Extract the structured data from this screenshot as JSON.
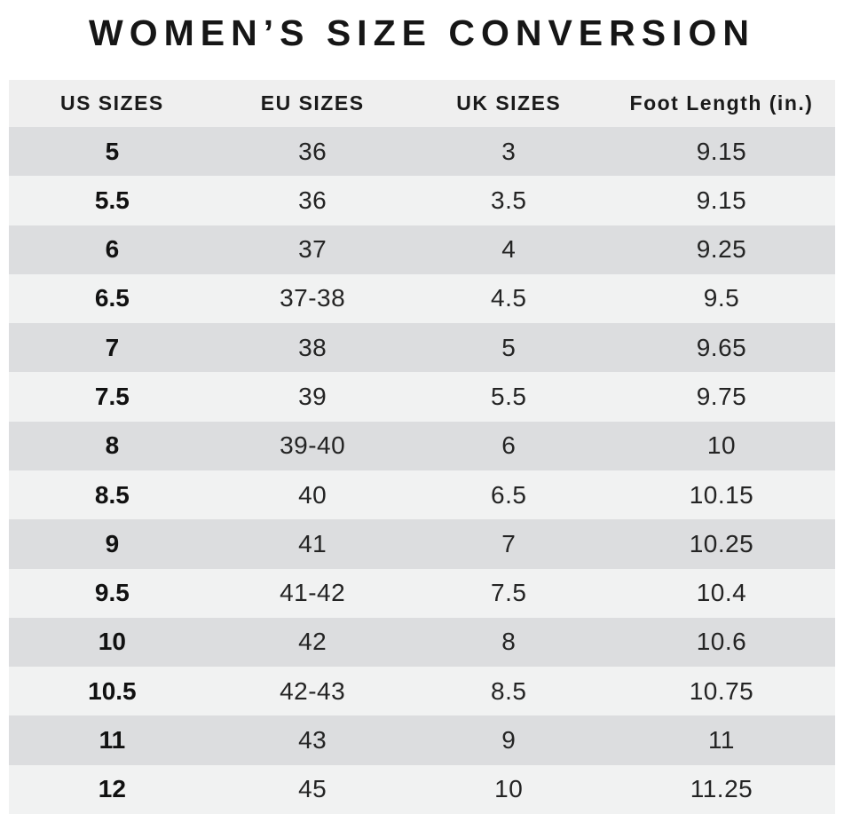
{
  "title": "WOMEN’S SIZE CONVERSION",
  "colors": {
    "page_background": "#ffffff",
    "header_row_background": "#efefef",
    "row_dark_background": "#dcdddf",
    "row_light_background": "#f1f2f2",
    "title_text": "#161616",
    "cell_text": "#242424"
  },
  "chart_data": {
    "type": "table",
    "title": "WOMEN’S SIZE CONVERSION",
    "columns": [
      "US SIZES",
      "EU SIZES",
      "UK SIZES",
      "Foot Length (in.)"
    ],
    "rows": [
      [
        "5",
        "36",
        "3",
        "9.15"
      ],
      [
        "5.5",
        "36",
        "3.5",
        "9.15"
      ],
      [
        "6",
        "37",
        "4",
        "9.25"
      ],
      [
        "6.5",
        "37-38",
        "4.5",
        "9.5"
      ],
      [
        "7",
        "38",
        "5",
        "9.65"
      ],
      [
        "7.5",
        "39",
        "5.5",
        "9.75"
      ],
      [
        "8",
        "39-40",
        "6",
        "10"
      ],
      [
        "8.5",
        "40",
        "6.5",
        "10.15"
      ],
      [
        "9",
        "41",
        "7",
        "10.25"
      ],
      [
        "9.5",
        "41-42",
        "7.5",
        "10.4"
      ],
      [
        "10",
        "42",
        "8",
        "10.6"
      ],
      [
        "10.5",
        "42-43",
        "8.5",
        "10.75"
      ],
      [
        "11",
        "43",
        "9",
        "11"
      ],
      [
        "12",
        "45",
        "10",
        "11.25"
      ]
    ],
    "layout": {
      "striped": true,
      "first_data_row_shade": "dark",
      "bold_column_index": 0,
      "grid": false,
      "legend": "none"
    }
  }
}
